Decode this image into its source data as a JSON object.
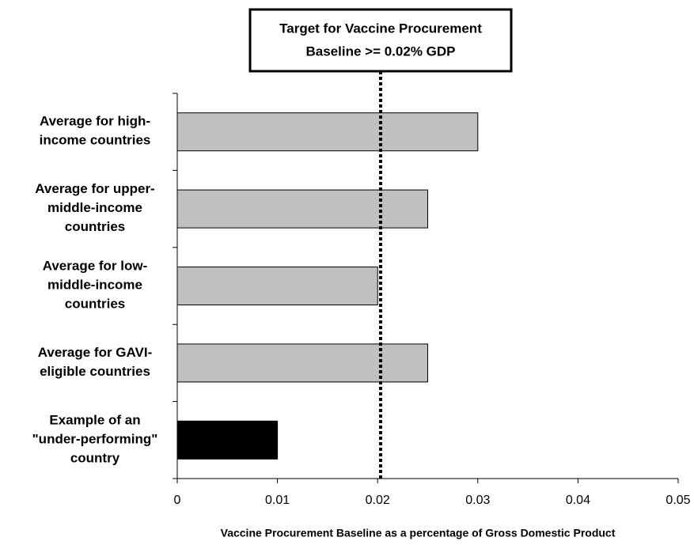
{
  "chart_data": {
    "type": "bar",
    "orientation": "horizontal",
    "categories": [
      "Average for high-\nincome countries",
      "Average for upper-\nmiddle-income\ncountries",
      "Average for low-\nmiddle-income\ncountries",
      "Average for GAVI-\neligible countries",
      "Example of an\n\"under-performing\"\ncountry"
    ],
    "values": [
      0.03,
      0.025,
      0.02,
      0.025,
      0.01
    ],
    "colors": [
      "#c0c0c0",
      "#c0c0c0",
      "#c0c0c0",
      "#c0c0c0",
      "#000000"
    ],
    "xlim": [
      0,
      0.05
    ],
    "xticks": [
      0,
      0.01,
      0.02,
      0.03,
      0.04,
      0.05
    ],
    "xlabel": "Vaccine Procurement Baseline as a percentage of Gross Domestic Product",
    "annotation": {
      "lines": [
        "Target for Vaccine Procurement",
        "Baseline >= 0.02% GDP"
      ],
      "value": 0.0203
    }
  }
}
